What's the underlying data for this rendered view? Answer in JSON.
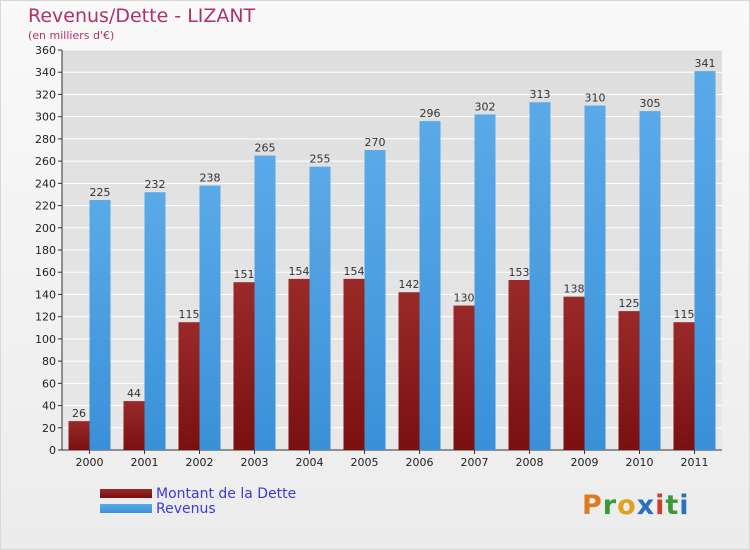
{
  "header": {
    "title": "Revenus/Dette - LIZANT",
    "subtitle": "(en milliers d'€)"
  },
  "brand": {
    "letters": [
      "P",
      "r",
      "o",
      "x",
      "i",
      "t",
      "i"
    ],
    "colors": [
      "#e07a1f",
      "#3a9a3a",
      "#e0a020",
      "#2a6fc0",
      "#d33a2a",
      "#3a9a3a",
      "#2a6fc0"
    ]
  },
  "colors": {
    "debt": "#7a1010",
    "revenue": "#3a90d8",
    "grid": "#ffffff"
  },
  "chart_data": {
    "type": "bar",
    "title": "Revenus/Dette - LIZANT",
    "subtitle": "(en milliers d'€)",
    "categories": [
      "2000",
      "2001",
      "2002",
      "2003",
      "2004",
      "2005",
      "2006",
      "2007",
      "2008",
      "2009",
      "2010",
      "2011"
    ],
    "series": [
      {
        "name": "Montant de la Dette",
        "values": [
          26,
          44,
          115,
          151,
          154,
          154,
          142,
          130,
          153,
          138,
          125,
          115
        ]
      },
      {
        "name": "Revenus",
        "values": [
          225,
          232,
          238,
          265,
          255,
          270,
          296,
          302,
          313,
          310,
          305,
          341
        ]
      }
    ],
    "ylim": [
      0,
      360
    ],
    "yticks": [
      0,
      20,
      40,
      60,
      80,
      100,
      120,
      140,
      160,
      180,
      200,
      220,
      240,
      260,
      280,
      300,
      320,
      340,
      360
    ],
    "grid": true,
    "legend_position": "bottom-left"
  }
}
